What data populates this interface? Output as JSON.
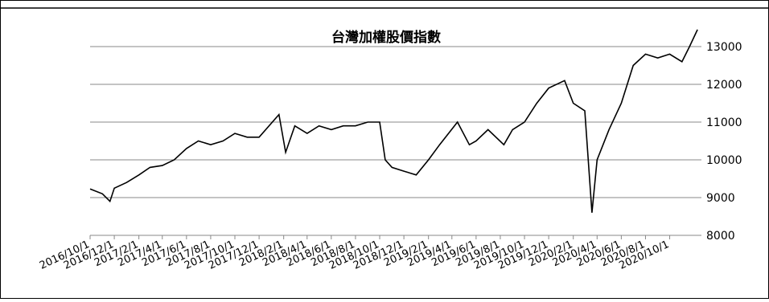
{
  "chart_data": {
    "type": "line",
    "title": "台灣加權股價指數",
    "x": [
      "2016/10/1",
      "2016/11/1",
      "2016/11/20",
      "2016/12/1",
      "2017/1/1",
      "2017/2/1",
      "2017/3/1",
      "2017/4/1",
      "2017/5/1",
      "2017/6/1",
      "2017/7/1",
      "2017/8/1",
      "2017/9/1",
      "2017/10/1",
      "2017/11/1",
      "2017/12/1",
      "2018/1/20",
      "2018/2/6",
      "2018/3/1",
      "2018/4/1",
      "2018/5/1",
      "2018/6/1",
      "2018/7/1",
      "2018/8/1",
      "2018/9/1",
      "2018/10/1",
      "2018/10/15",
      "2018/11/1",
      "2018/12/1",
      "2019/1/1",
      "2019/2/1",
      "2019/3/1",
      "2019/4/15",
      "2019/5/15",
      "2019/6/1",
      "2019/7/1",
      "2019/8/10",
      "2019/9/1",
      "2019/10/1",
      "2019/11/1",
      "2019/12/1",
      "2020/1/10",
      "2020/2/1",
      "2020/3/1",
      "2020/3/19",
      "2020/4/1",
      "2020/5/1",
      "2020/6/1",
      "2020/7/1",
      "2020/8/1",
      "2020/9/1",
      "2020/10/1",
      "2020/11/1",
      "2020/11/20",
      "2020/12/10"
    ],
    "series": [
      {
        "name": "台灣加權股價指數",
        "color": "#000000",
        "values": [
          9230,
          9100,
          8900,
          9250,
          9400,
          9600,
          9800,
          9850,
          10000,
          10300,
          10500,
          10400,
          10500,
          10700,
          10600,
          10600,
          11200,
          10200,
          10900,
          10700,
          10900,
          10800,
          10900,
          10900,
          11000,
          11000,
          10000,
          9800,
          9700,
          9600,
          10000,
          10400,
          11000,
          10400,
          10500,
          10800,
          10400,
          10800,
          11000,
          11500,
          11900,
          12100,
          11500,
          11300,
          8600,
          10000,
          10800,
          11500,
          12500,
          12800,
          12700,
          12800,
          12600,
          13000,
          13450
        ]
      }
    ],
    "xlim": [
      "2016/10/1",
      "2020/12/20"
    ],
    "xticks": [
      "2016/10/1",
      "2016/12/1",
      "2017/2/1",
      "2017/4/1",
      "2017/6/1",
      "2017/8/1",
      "2017/10/1",
      "2017/12/1",
      "2018/2/1",
      "2018/4/1",
      "2018/6/1",
      "2018/8/1",
      "2018/10/1",
      "2018/12/1",
      "2019/2/1",
      "2019/4/1",
      "2019/6/1",
      "2019/8/1",
      "2019/10/1",
      "2019/12/1",
      "2020/2/1",
      "2020/4/1",
      "2020/6/1",
      "2020/8/1",
      "2020/10/1"
    ],
    "ylim": [
      8000,
      14000
    ],
    "yticks": [
      8000,
      9000,
      10000,
      11000,
      12000,
      13000
    ],
    "grid": true
  }
}
